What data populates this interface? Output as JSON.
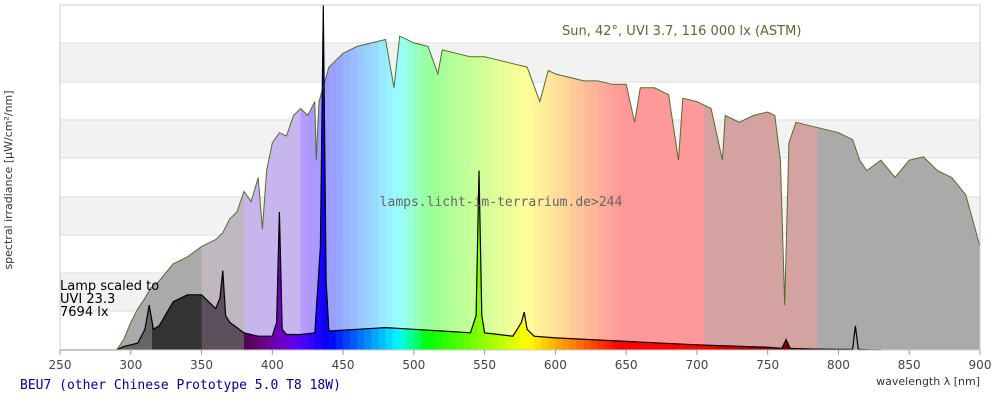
{
  "chart_data": {
    "type": "area",
    "xlabel": "wavelength λ [nm]",
    "ylabel": "spectral irradiance [µW/cm²/nm]",
    "xlim": [
      250,
      900
    ],
    "xticks": [
      250,
      300,
      350,
      400,
      450,
      500,
      550,
      600,
      650,
      700,
      750,
      800,
      850,
      900
    ],
    "grid": "horizontal bands",
    "title": "BEU7 (other Chinese Prototype 5.0 T8 18W)",
    "watermark": "lamps.licht-im-terrarium.de>244",
    "sun_label": "Sun, 42°, UVI 3.7, 116 000 lx (ASTM)",
    "lamp_label": [
      "Lamp scaled to",
      "UVI 23.3",
      "7694 lx"
    ],
    "series": [
      {
        "name": "Sun, 42°, UVI 3.7, 116 000 lx (ASTM)",
        "color": "#556b2f",
        "x": [
          290,
          295,
          300,
          305,
          310,
          314,
          320,
          330,
          340,
          350,
          355,
          360,
          365,
          370,
          375,
          380,
          385,
          390,
          393,
          396,
          400,
          405,
          410,
          415,
          420,
          425,
          430,
          431,
          433,
          440,
          445,
          450,
          460,
          470,
          480,
          486,
          490,
          500,
          510,
          517,
          520,
          530,
          540,
          550,
          560,
          570,
          580,
          589,
          595,
          600,
          610,
          620,
          630,
          640,
          650,
          656,
          660,
          670,
          680,
          687,
          690,
          700,
          710,
          718,
          720,
          730,
          740,
          750,
          755,
          759,
          762,
          765,
          770,
          780,
          790,
          800,
          810,
          815,
          820,
          830,
          840,
          850,
          860,
          870,
          880,
          890,
          900
        ],
        "y": [
          0,
          0.03,
          0.08,
          0.12,
          0.15,
          0.18,
          0.2,
          0.25,
          0.27,
          0.3,
          0.31,
          0.32,
          0.34,
          0.38,
          0.4,
          0.46,
          0.43,
          0.5,
          0.35,
          0.52,
          0.6,
          0.63,
          0.62,
          0.68,
          0.7,
          0.68,
          0.72,
          0.55,
          0.72,
          0.82,
          0.84,
          0.86,
          0.88,
          0.89,
          0.9,
          0.76,
          0.91,
          0.89,
          0.88,
          0.8,
          0.87,
          0.86,
          0.85,
          0.85,
          0.84,
          0.83,
          0.82,
          0.72,
          0.81,
          0.8,
          0.79,
          0.78,
          0.78,
          0.77,
          0.77,
          0.66,
          0.76,
          0.76,
          0.74,
          0.55,
          0.73,
          0.72,
          0.7,
          0.55,
          0.68,
          0.66,
          0.68,
          0.69,
          0.68,
          0.55,
          0.13,
          0.6,
          0.66,
          0.65,
          0.64,
          0.63,
          0.61,
          0.55,
          0.52,
          0.55,
          0.5,
          0.55,
          0.56,
          0.52,
          0.5,
          0.45,
          0.3
        ]
      },
      {
        "name": "BEU7 (other Chinese Prototype 5.0 T8 18W)",
        "color": "#000000",
        "x": [
          250,
          290,
          295,
          300,
          305,
          310,
          313,
          316,
          320,
          330,
          340,
          345,
          350,
          360,
          363,
          365,
          367,
          370,
          380,
          390,
          400,
          403,
          405,
          407,
          410,
          420,
          430,
          434,
          436,
          438,
          440,
          460,
          480,
          500,
          520,
          540,
          544,
          546,
          548,
          550,
          570,
          576,
          578,
          580,
          585,
          600,
          650,
          700,
          750,
          760,
          763,
          766,
          780,
          800,
          810,
          812,
          814,
          820,
          830
        ],
        "y": [
          0,
          0,
          0.01,
          0.015,
          0.02,
          0.06,
          0.13,
          0.06,
          0.07,
          0.14,
          0.16,
          0.16,
          0.16,
          0.12,
          0.15,
          0.23,
          0.1,
          0.08,
          0.05,
          0.04,
          0.04,
          0.08,
          0.4,
          0.06,
          0.045,
          0.045,
          0.05,
          0.3,
          1.0,
          0.2,
          0.055,
          0.06,
          0.065,
          0.06,
          0.055,
          0.05,
          0.1,
          0.52,
          0.1,
          0.05,
          0.04,
          0.08,
          0.11,
          0.06,
          0.04,
          0.035,
          0.025,
          0.015,
          0.008,
          0.005,
          0.03,
          0.005,
          0.003,
          0.002,
          0.002,
          0.07,
          0.002,
          0.001,
          0
        ]
      }
    ]
  }
}
